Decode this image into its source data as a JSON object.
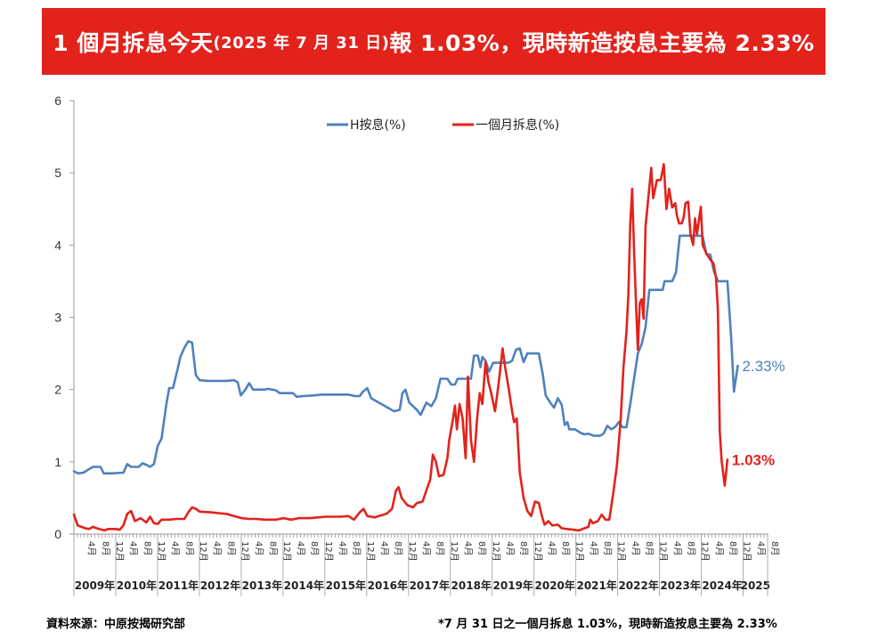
{
  "title": {
    "part1": "1 個月拆息今天",
    "part2": "(2025 年 7 月 31 日)",
    "part3": "報 1.03%，現時新造按息主要為 2.33%"
  },
  "footer": {
    "source": "資料來源：中原按揭研究部",
    "note": "*7 月 31 日之一個月拆息 1.03%，現時新造按息主要為 2.33%"
  },
  "chart_data": {
    "type": "line",
    "ylim": [
      0,
      6
    ],
    "yticks": [
      0,
      1,
      2,
      3,
      4,
      5,
      6
    ],
    "xlim": [
      2009.0,
      2025.67
    ],
    "grid": false,
    "legend": "top-center",
    "month_tick_labels": [
      "4月",
      "8月",
      "12月"
    ],
    "years": [
      "2009年",
      "2010年",
      "2011年",
      "2012年",
      "2013年",
      "2014年",
      "2015年",
      "2016年",
      "2017年",
      "2018年",
      "2019年",
      "2020年",
      "2021年",
      "2022年",
      "2023年",
      "2024年",
      "2025"
    ],
    "series": [
      {
        "name": "H按息(%)",
        "color": "#4f81bd",
        "end_label": "2.33%",
        "points": [
          [
            2009.0,
            0.87
          ],
          [
            2009.1,
            0.84
          ],
          [
            2009.25,
            0.85
          ],
          [
            2009.4,
            0.9
          ],
          [
            2009.5,
            0.93
          ],
          [
            2009.7,
            0.93
          ],
          [
            2009.78,
            0.84
          ],
          [
            2010.0,
            0.84
          ],
          [
            2010.3,
            0.85
          ],
          [
            2010.4,
            0.97
          ],
          [
            2010.5,
            0.93
          ],
          [
            2010.7,
            0.93
          ],
          [
            2010.8,
            0.98
          ],
          [
            2010.9,
            0.96
          ],
          [
            2011.0,
            0.93
          ],
          [
            2011.1,
            0.97
          ],
          [
            2011.2,
            1.22
          ],
          [
            2011.3,
            1.32
          ],
          [
            2011.42,
            1.78
          ],
          [
            2011.5,
            2.02
          ],
          [
            2011.6,
            2.02
          ],
          [
            2011.72,
            2.28
          ],
          [
            2011.8,
            2.46
          ],
          [
            2011.9,
            2.58
          ],
          [
            2012.0,
            2.67
          ],
          [
            2012.1,
            2.65
          ],
          [
            2012.2,
            2.2
          ],
          [
            2012.3,
            2.13
          ],
          [
            2012.5,
            2.12
          ],
          [
            2012.8,
            2.12
          ],
          [
            2013.0,
            2.12
          ],
          [
            2013.2,
            2.13
          ],
          [
            2013.3,
            2.1
          ],
          [
            2013.38,
            1.92
          ],
          [
            2013.5,
            2.0
          ],
          [
            2013.6,
            2.09
          ],
          [
            2013.7,
            2.0
          ],
          [
            2014.0,
            2.0
          ],
          [
            2014.1,
            2.01
          ],
          [
            2014.3,
            1.99
          ],
          [
            2014.4,
            1.95
          ],
          [
            2014.75,
            1.95
          ],
          [
            2014.85,
            1.9
          ],
          [
            2015.0,
            1.91
          ],
          [
            2015.3,
            1.92
          ],
          [
            2015.5,
            1.93
          ],
          [
            2015.7,
            1.93
          ],
          [
            2016.0,
            1.93
          ],
          [
            2016.2,
            1.93
          ],
          [
            2016.38,
            1.91
          ],
          [
            2016.5,
            1.91
          ],
          [
            2016.58,
            1.97
          ],
          [
            2016.7,
            2.02
          ],
          [
            2016.8,
            1.88
          ],
          [
            2017.0,
            1.82
          ],
          [
            2017.2,
            1.76
          ],
          [
            2017.4,
            1.7
          ],
          [
            2017.55,
            1.72
          ],
          [
            2017.62,
            1.95
          ],
          [
            2017.7,
            2.0
          ],
          [
            2017.8,
            1.82
          ],
          [
            2018.0,
            1.72
          ],
          [
            2018.1,
            1.65
          ],
          [
            2018.25,
            1.82
          ],
          [
            2018.38,
            1.77
          ],
          [
            2018.5,
            1.88
          ],
          [
            2018.62,
            2.15
          ],
          [
            2018.8,
            2.15
          ],
          [
            2018.9,
            2.07
          ],
          [
            2019.0,
            2.07
          ],
          [
            2019.07,
            2.15
          ],
          [
            2019.2,
            2.15
          ],
          [
            2019.42,
            2.15
          ],
          [
            2019.5,
            2.47
          ],
          [
            2019.6,
            2.47
          ],
          [
            2019.67,
            2.31
          ],
          [
            2019.72,
            2.45
          ],
          [
            2019.8,
            2.4
          ],
          [
            2019.9,
            2.25
          ],
          [
            2020.0,
            2.37
          ],
          [
            2020.2,
            2.37
          ],
          [
            2020.4,
            2.37
          ],
          [
            2020.5,
            2.4
          ],
          [
            2020.6,
            2.55
          ],
          [
            2020.7,
            2.57
          ],
          [
            2020.8,
            2.38
          ],
          [
            2020.9,
            2.5
          ],
          [
            2021.2,
            2.5
          ],
          [
            2021.3,
            2.22
          ],
          [
            2021.38,
            1.92
          ],
          [
            2021.5,
            1.82
          ],
          [
            2021.6,
            1.75
          ],
          [
            2021.7,
            1.88
          ],
          [
            2021.8,
            1.79
          ],
          [
            2021.88,
            1.51
          ],
          [
            2021.95,
            1.55
          ],
          [
            2022.0,
            1.45
          ],
          [
            2022.15,
            1.45
          ],
          [
            2022.3,
            1.4
          ],
          [
            2022.4,
            1.38
          ],
          [
            2022.5,
            1.39
          ],
          [
            2022.65,
            1.36
          ],
          [
            2022.8,
            1.36
          ],
          [
            2022.9,
            1.39
          ],
          [
            2023.0,
            1.5
          ],
          [
            2023.1,
            1.45
          ],
          [
            2023.2,
            1.48
          ],
          [
            2023.3,
            1.55
          ],
          [
            2023.4,
            1.48
          ],
          [
            2023.5,
            1.48
          ],
          [
            2023.6,
            1.8
          ],
          [
            2023.72,
            2.22
          ],
          [
            2023.8,
            2.5
          ],
          [
            2023.9,
            2.63
          ],
          [
            2024.0,
            2.86
          ],
          [
            2024.1,
            3.38
          ],
          [
            2024.3,
            3.38
          ],
          [
            2024.45,
            3.38
          ],
          [
            2024.5,
            3.5
          ],
          [
            2024.7,
            3.5
          ],
          [
            2024.8,
            3.62
          ],
          [
            2024.9,
            4.13
          ],
          [
            2025.05,
            4.13
          ],
          [
            2025.2,
            4.13
          ],
          [
            2025.3,
            4.13
          ],
          [
            2025.45,
            4.13
          ],
          [
            2025.5,
            4.12
          ],
          [
            2025.6,
            3.87
          ],
          [
            2025.7,
            3.87
          ],
          [
            2025.8,
            3.63
          ],
          [
            2025.9,
            3.5
          ],
          [
            2026.15,
            3.5
          ],
          [
            2026.25,
            2.7
          ],
          [
            2026.32,
            1.97
          ],
          [
            2026.42,
            2.33
          ]
        ]
      },
      {
        "name": "一個月拆息(%)",
        "color": "#e3221c",
        "end_label": "1.03%",
        "points": [
          [
            2009.0,
            0.27
          ],
          [
            2009.1,
            0.12
          ],
          [
            2009.3,
            0.08
          ],
          [
            2009.4,
            0.07
          ],
          [
            2009.5,
            0.1
          ],
          [
            2009.6,
            0.08
          ],
          [
            2009.8,
            0.05
          ],
          [
            2009.9,
            0.07
          ],
          [
            2010.1,
            0.07
          ],
          [
            2010.2,
            0.06
          ],
          [
            2010.3,
            0.12
          ],
          [
            2010.4,
            0.28
          ],
          [
            2010.5,
            0.32
          ],
          [
            2010.6,
            0.18
          ],
          [
            2010.75,
            0.22
          ],
          [
            2010.9,
            0.16
          ],
          [
            2011.0,
            0.24
          ],
          [
            2011.1,
            0.15
          ],
          [
            2011.2,
            0.14
          ],
          [
            2011.3,
            0.2
          ],
          [
            2011.5,
            0.2
          ],
          [
            2011.7,
            0.21
          ],
          [
            2011.9,
            0.21
          ],
          [
            2012.0,
            0.3
          ],
          [
            2012.1,
            0.37
          ],
          [
            2012.2,
            0.35
          ],
          [
            2012.3,
            0.31
          ],
          [
            2012.6,
            0.3
          ],
          [
            2012.8,
            0.29
          ],
          [
            2013.0,
            0.28
          ],
          [
            2013.2,
            0.25
          ],
          [
            2013.4,
            0.22
          ],
          [
            2013.6,
            0.21
          ],
          [
            2013.8,
            0.21
          ],
          [
            2014.0,
            0.2
          ],
          [
            2014.3,
            0.2
          ],
          [
            2014.5,
            0.22
          ],
          [
            2014.7,
            0.2
          ],
          [
            2014.9,
            0.22
          ],
          [
            2015.0,
            0.22
          ],
          [
            2015.2,
            0.22
          ],
          [
            2015.4,
            0.23
          ],
          [
            2015.6,
            0.24
          ],
          [
            2015.8,
            0.24
          ],
          [
            2016.0,
            0.24
          ],
          [
            2016.2,
            0.25
          ],
          [
            2016.35,
            0.2
          ],
          [
            2016.5,
            0.3
          ],
          [
            2016.6,
            0.35
          ],
          [
            2016.7,
            0.25
          ],
          [
            2016.8,
            0.24
          ],
          [
            2016.9,
            0.23
          ],
          [
            2017.0,
            0.25
          ],
          [
            2017.2,
            0.28
          ],
          [
            2017.35,
            0.35
          ],
          [
            2017.45,
            0.6
          ],
          [
            2017.52,
            0.65
          ],
          [
            2017.6,
            0.5
          ],
          [
            2017.75,
            0.4
          ],
          [
            2017.9,
            0.37
          ],
          [
            2018.0,
            0.43
          ],
          [
            2018.15,
            0.45
          ],
          [
            2018.28,
            0.65
          ],
          [
            2018.35,
            0.75
          ],
          [
            2018.42,
            1.1
          ],
          [
            2018.5,
            1.0
          ],
          [
            2018.58,
            0.8
          ],
          [
            2018.7,
            0.82
          ],
          [
            2018.8,
            1.05
          ],
          [
            2018.85,
            1.3
          ],
          [
            2018.95,
            1.6
          ],
          [
            2019.0,
            1.78
          ],
          [
            2019.05,
            1.45
          ],
          [
            2019.12,
            1.8
          ],
          [
            2019.2,
            1.6
          ],
          [
            2019.28,
            1.05
          ],
          [
            2019.34,
            2.18
          ],
          [
            2019.42,
            1.3
          ],
          [
            2019.5,
            1.0
          ],
          [
            2019.58,
            1.6
          ],
          [
            2019.65,
            1.95
          ],
          [
            2019.72,
            1.8
          ],
          [
            2019.8,
            2.38
          ],
          [
            2019.88,
            2.1
          ],
          [
            2019.95,
            1.95
          ],
          [
            2020.05,
            1.7
          ],
          [
            2020.15,
            2.1
          ],
          [
            2020.25,
            2.57
          ],
          [
            2020.32,
            2.3
          ],
          [
            2020.4,
            2.05
          ],
          [
            2020.5,
            1.7
          ],
          [
            2020.55,
            1.55
          ],
          [
            2020.62,
            1.6
          ],
          [
            2020.7,
            0.85
          ],
          [
            2020.8,
            0.5
          ],
          [
            2020.9,
            0.32
          ],
          [
            2021.0,
            0.25
          ],
          [
            2021.1,
            0.45
          ],
          [
            2021.2,
            0.43
          ],
          [
            2021.28,
            0.25
          ],
          [
            2021.35,
            0.13
          ],
          [
            2021.45,
            0.18
          ],
          [
            2021.55,
            0.12
          ],
          [
            2021.7,
            0.13
          ],
          [
            2021.8,
            0.08
          ],
          [
            2021.95,
            0.07
          ],
          [
            2022.1,
            0.06
          ],
          [
            2022.25,
            0.05
          ],
          [
            2022.4,
            0.08
          ],
          [
            2022.5,
            0.1
          ],
          [
            2022.55,
            0.2
          ],
          [
            2022.62,
            0.15
          ],
          [
            2022.75,
            0.18
          ],
          [
            2022.85,
            0.27
          ],
          [
            2022.95,
            0.2
          ],
          [
            2023.05,
            0.2
          ],
          [
            2023.15,
            0.55
          ],
          [
            2023.25,
            0.95
          ],
          [
            2023.35,
            1.6
          ],
          [
            2023.42,
            2.3
          ],
          [
            2023.5,
            2.8
          ],
          [
            2023.55,
            3.3
          ],
          [
            2023.6,
            4.3
          ],
          [
            2023.65,
            4.78
          ],
          [
            2023.7,
            3.9
          ],
          [
            2023.75,
            3.2
          ],
          [
            2023.8,
            2.55
          ],
          [
            2023.85,
            3.2
          ],
          [
            2023.9,
            3.25
          ],
          [
            2023.95,
            2.98
          ],
          [
            2024.0,
            4.25
          ],
          [
            2024.1,
            4.8
          ],
          [
            2024.15,
            5.07
          ],
          [
            2024.2,
            4.65
          ],
          [
            2024.3,
            4.9
          ],
          [
            2024.4,
            4.9
          ],
          [
            2024.48,
            5.12
          ],
          [
            2024.55,
            4.5
          ],
          [
            2024.62,
            4.78
          ],
          [
            2024.7,
            4.52
          ],
          [
            2024.78,
            4.58
          ],
          [
            2024.82,
            4.42
          ],
          [
            2024.88,
            4.3
          ],
          [
            2024.95,
            4.3
          ],
          [
            2025.0,
            4.38
          ],
          [
            2025.05,
            4.58
          ],
          [
            2025.12,
            4.6
          ],
          [
            2025.18,
            4.15
          ],
          [
            2025.25,
            4.0
          ],
          [
            2025.3,
            4.37
          ],
          [
            2025.35,
            4.15
          ],
          [
            2025.45,
            4.53
          ],
          [
            2025.5,
            4.0
          ],
          [
            2025.6,
            3.88
          ],
          [
            2025.7,
            3.8
          ],
          [
            2025.78,
            3.75
          ],
          [
            2025.85,
            3.55
          ],
          [
            2025.9,
            3.1
          ],
          [
            2025.95,
            1.42
          ],
          [
            2026.0,
            1.0
          ],
          [
            2026.08,
            0.67
          ],
          [
            2026.15,
            1.03
          ]
        ]
      }
    ]
  }
}
